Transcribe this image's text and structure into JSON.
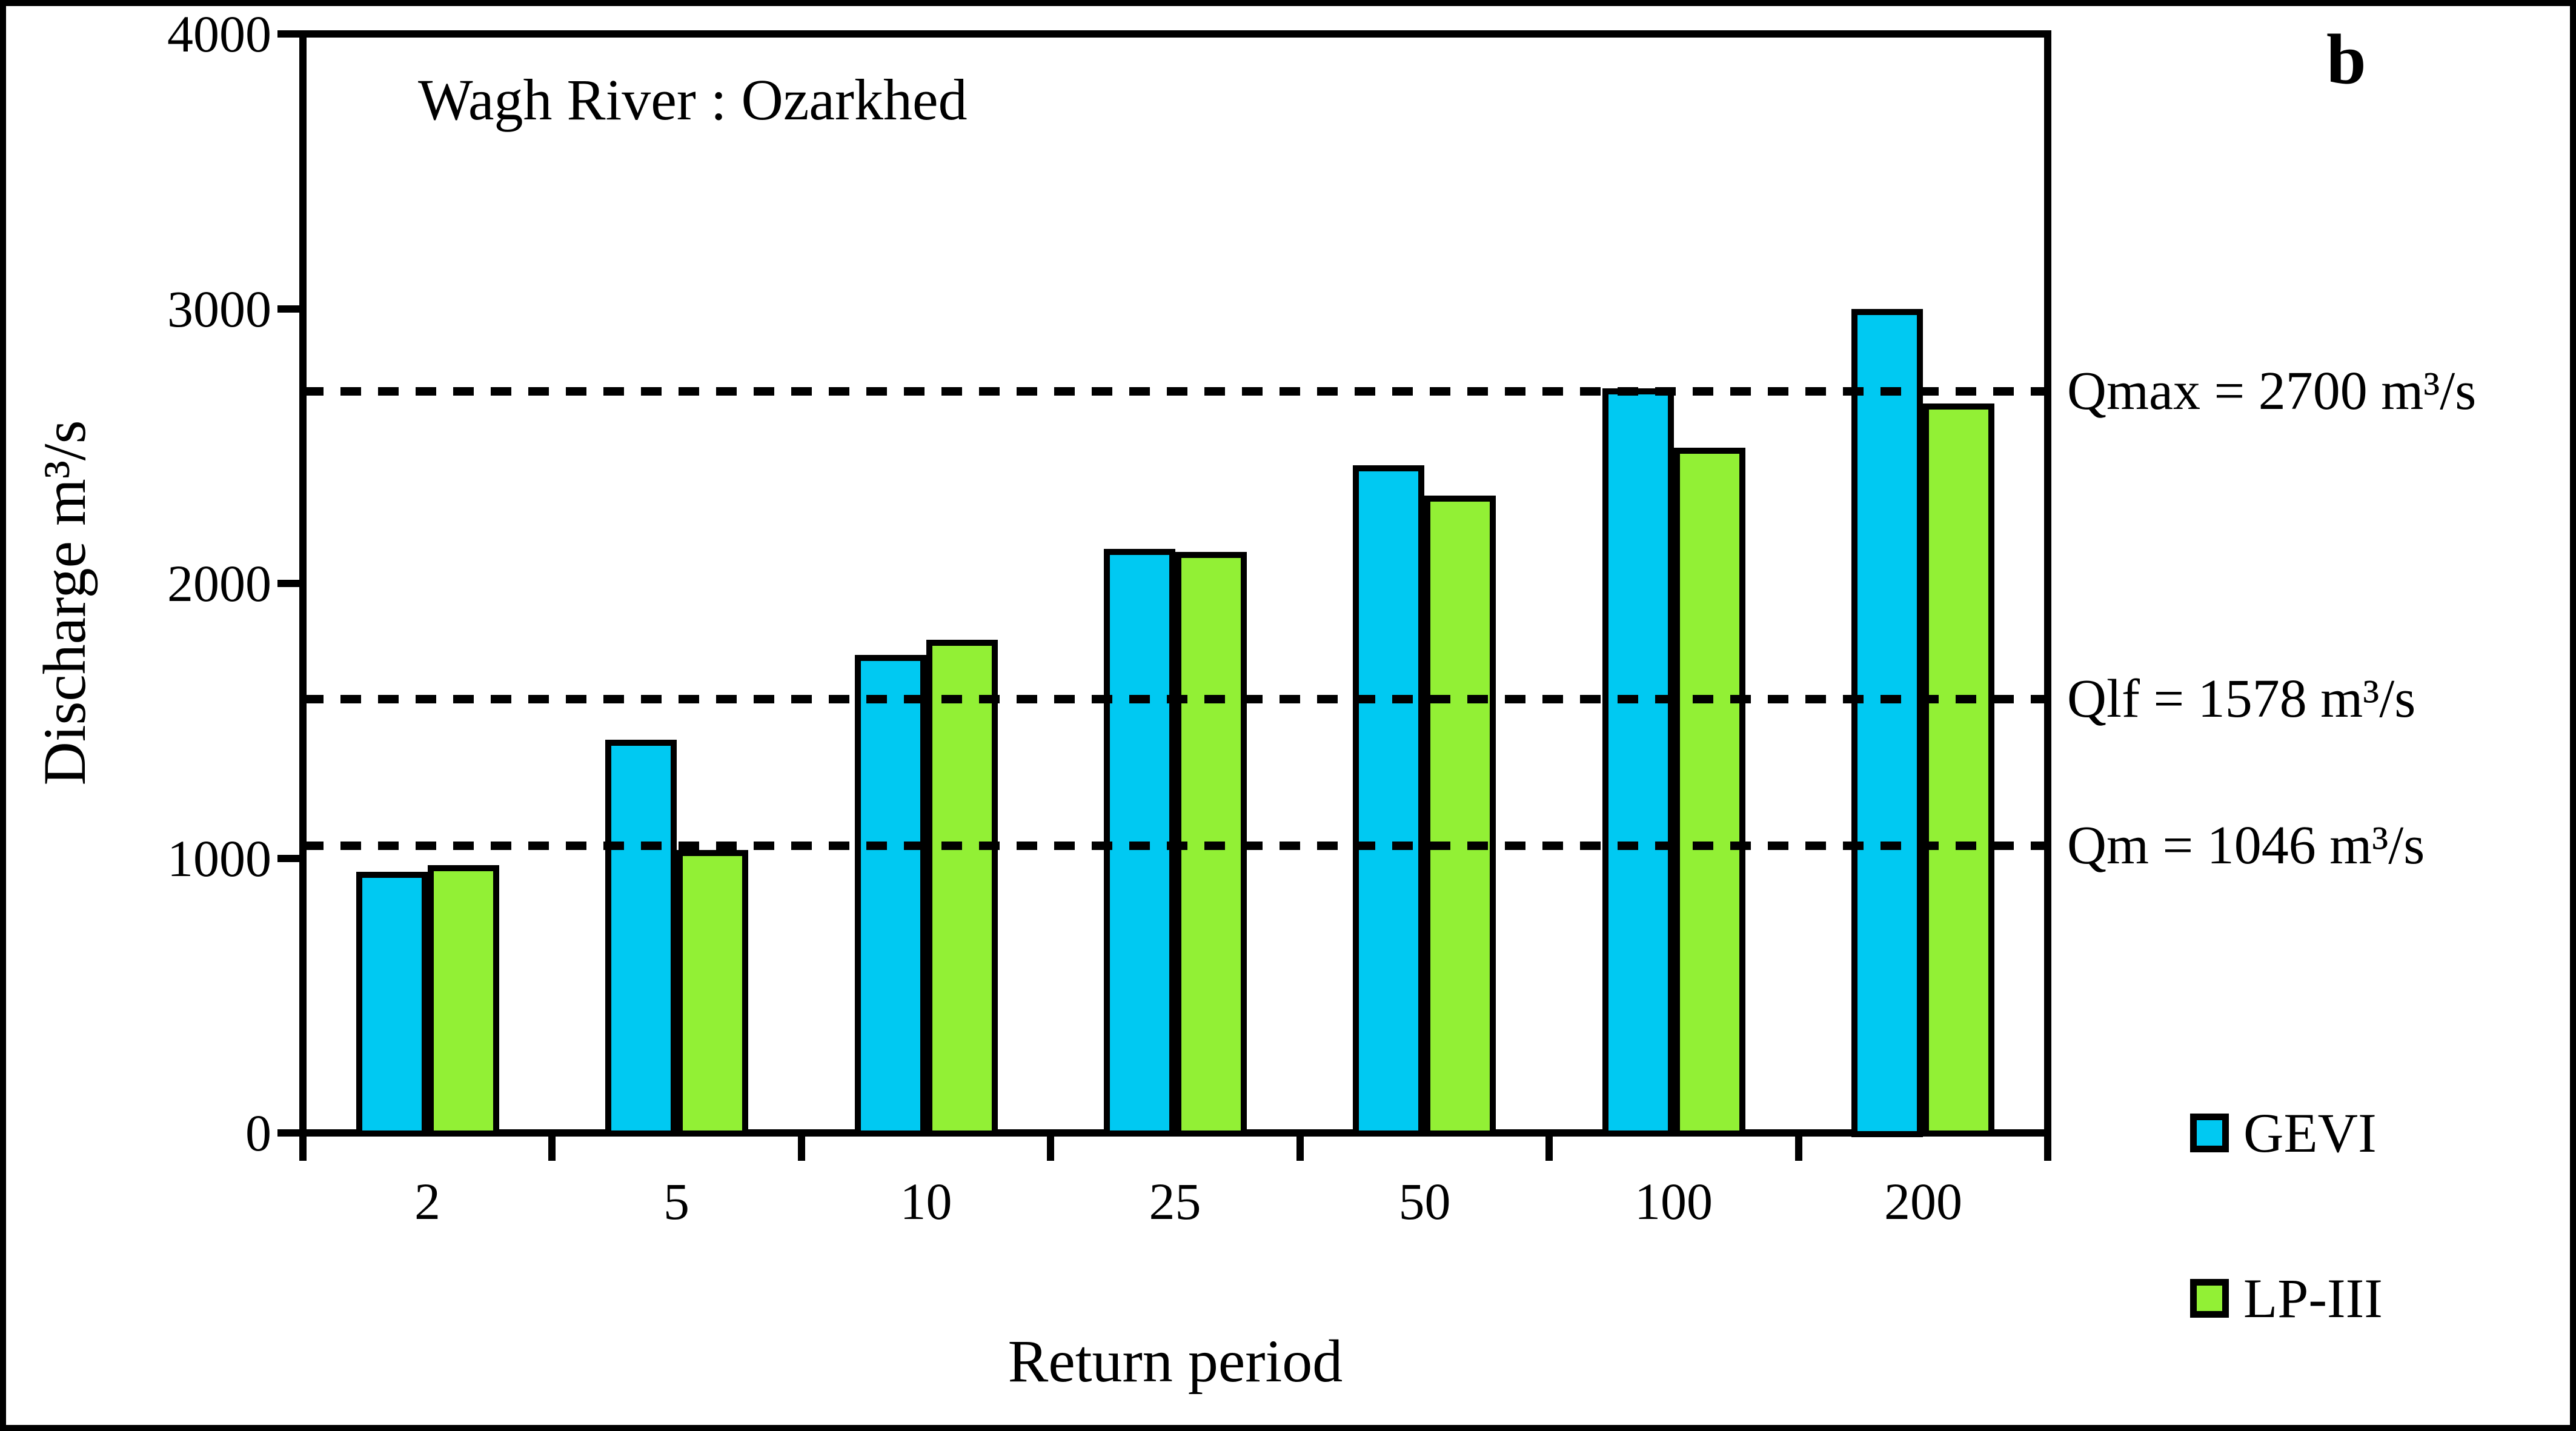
{
  "figure": {
    "panel_label": "b",
    "background_color": "#ffffff",
    "frame_color": "#000000"
  },
  "chart_data": {
    "type": "bar",
    "title": "Wagh River : Ozarkhed",
    "xlabel": "Return period",
    "ylabel": "Discharge m³/s",
    "categories": [
      "2",
      "5",
      "10",
      "25",
      "50",
      "100",
      "200"
    ],
    "series": [
      {
        "name": "GEVI",
        "color": "#00C9F2",
        "values": [
          950,
          1430,
          1740,
          2125,
          2430,
          2710,
          3000
        ]
      },
      {
        "name": "LP-III",
        "color": "#92F035",
        "values": [
          975,
          1030,
          1795,
          2115,
          2320,
          2495,
          2655
        ]
      }
    ],
    "ylim": [
      0,
      4000
    ],
    "yticks": [
      "0",
      "1000",
      "2000",
      "3000",
      "4000"
    ],
    "grid": false,
    "legend_position": "right-bottom",
    "bar_border_color": "#000000",
    "reference_lines": [
      {
        "name": "Qmax",
        "value": 2700,
        "label": "Qmax = 2700 m³/s",
        "style": "dashed"
      },
      {
        "name": "Qlf",
        "value": 1578,
        "label": "Qlf = 1578 m³/s",
        "style": "dashed"
      },
      {
        "name": "Qm",
        "value": 1046,
        "label": "Qm = 1046 m³/s",
        "style": "dashed"
      }
    ]
  },
  "legend": {
    "items": [
      {
        "label": "GEVI",
        "color": "#00C9F2"
      },
      {
        "label": "LP-III",
        "color": "#92F035"
      }
    ]
  }
}
